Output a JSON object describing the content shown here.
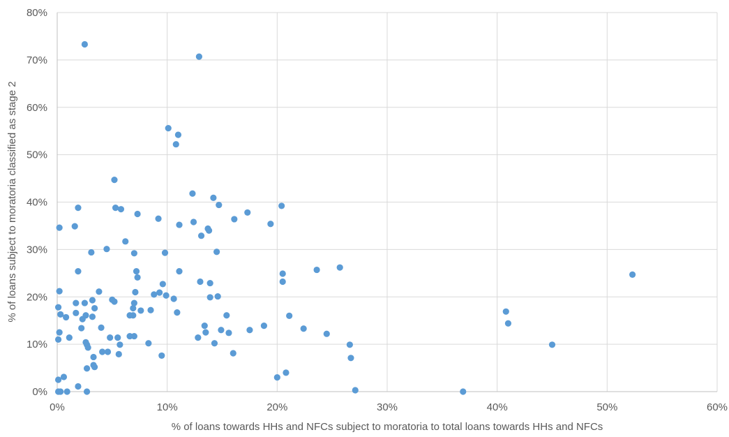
{
  "chart_data": {
    "type": "scatter",
    "title": "",
    "xlabel": "% of loans towards HHs and NFCs subject to moratoria to total loans towards HHs and NFCs",
    "ylabel": "% of loans subject to moratoria classified as stage 2",
    "xlim": [
      0,
      0.6
    ],
    "ylim": [
      0,
      0.8
    ],
    "grid": true,
    "x_ticks": [
      {
        "value": 0,
        "label": "0%"
      },
      {
        "value": 0.1,
        "label": "10%"
      },
      {
        "value": 0.2,
        "label": "20%"
      },
      {
        "value": 0.3,
        "label": "30%"
      },
      {
        "value": 0.4,
        "label": "40%"
      },
      {
        "value": 0.5,
        "label": "50%"
      },
      {
        "value": 0.6,
        "label": "60%"
      }
    ],
    "y_ticks": [
      {
        "value": 0,
        "label": "0%"
      },
      {
        "value": 0.1,
        "label": "10%"
      },
      {
        "value": 0.2,
        "label": "20%"
      },
      {
        "value": 0.3,
        "label": "30%"
      },
      {
        "value": 0.4,
        "label": "40%"
      },
      {
        "value": 0.5,
        "label": "50%"
      },
      {
        "value": 0.6,
        "label": "60%"
      },
      {
        "value": 0.7,
        "label": "70%"
      },
      {
        "value": 0.8,
        "label": "80%"
      }
    ],
    "marker_color": "#5b9bd5",
    "grid_color": "#d9d9d9",
    "points": [
      [
        0.025,
        0.733
      ],
      [
        0.129,
        0.707
      ],
      [
        0.101,
        0.556
      ],
      [
        0.11,
        0.542
      ],
      [
        0.108,
        0.522
      ],
      [
        0.052,
        0.447
      ],
      [
        0.123,
        0.418
      ],
      [
        0.142,
        0.409
      ],
      [
        0.204,
        0.392
      ],
      [
        0.147,
        0.394
      ],
      [
        0.019,
        0.388
      ],
      [
        0.053,
        0.388
      ],
      [
        0.058,
        0.385
      ],
      [
        0.173,
        0.378
      ],
      [
        0.073,
        0.375
      ],
      [
        0.092,
        0.365
      ],
      [
        0.161,
        0.364
      ],
      [
        0.124,
        0.358
      ],
      [
        0.194,
        0.354
      ],
      [
        0.111,
        0.352
      ],
      [
        0.016,
        0.349
      ],
      [
        0.002,
        0.346
      ],
      [
        0.137,
        0.344
      ],
      [
        0.138,
        0.34
      ],
      [
        0.131,
        0.329
      ],
      [
        0.062,
        0.317
      ],
      [
        0.045,
        0.301
      ],
      [
        0.031,
        0.294
      ],
      [
        0.07,
        0.292
      ],
      [
        0.098,
        0.293
      ],
      [
        0.145,
        0.295
      ],
      [
        0.257,
        0.262
      ],
      [
        0.236,
        0.257
      ],
      [
        0.523,
        0.247
      ],
      [
        0.019,
        0.254
      ],
      [
        0.072,
        0.254
      ],
      [
        0.111,
        0.254
      ],
      [
        0.205,
        0.249
      ],
      [
        0.073,
        0.241
      ],
      [
        0.13,
        0.232
      ],
      [
        0.205,
        0.232
      ],
      [
        0.139,
        0.229
      ],
      [
        0.096,
        0.227
      ],
      [
        0.002,
        0.212
      ],
      [
        0.038,
        0.211
      ],
      [
        0.071,
        0.21
      ],
      [
        0.093,
        0.209
      ],
      [
        0.088,
        0.205
      ],
      [
        0.099,
        0.203
      ],
      [
        0.146,
        0.201
      ],
      [
        0.139,
        0.199
      ],
      [
        0.106,
        0.196
      ],
      [
        0.05,
        0.194
      ],
      [
        0.032,
        0.193
      ],
      [
        0.052,
        0.19
      ],
      [
        0.017,
        0.187
      ],
      [
        0.025,
        0.187
      ],
      [
        0.07,
        0.187
      ],
      [
        0.001,
        0.178
      ],
      [
        0.034,
        0.176
      ],
      [
        0.069,
        0.176
      ],
      [
        0.076,
        0.171
      ],
      [
        0.085,
        0.172
      ],
      [
        0.408,
        0.169
      ],
      [
        0.109,
        0.167
      ],
      [
        0.017,
        0.166
      ],
      [
        0.003,
        0.163
      ],
      [
        0.026,
        0.161
      ],
      [
        0.066,
        0.161
      ],
      [
        0.069,
        0.161
      ],
      [
        0.154,
        0.161
      ],
      [
        0.211,
        0.16
      ],
      [
        0.032,
        0.158
      ],
      [
        0.008,
        0.157
      ],
      [
        0.023,
        0.153
      ],
      [
        0.41,
        0.144
      ],
      [
        0.134,
        0.139
      ],
      [
        0.188,
        0.139
      ],
      [
        0.04,
        0.135
      ],
      [
        0.022,
        0.134
      ],
      [
        0.224,
        0.133
      ],
      [
        0.175,
        0.13
      ],
      [
        0.149,
        0.13
      ],
      [
        0.002,
        0.125
      ],
      [
        0.135,
        0.125
      ],
      [
        0.156,
        0.124
      ],
      [
        0.245,
        0.122
      ],
      [
        0.066,
        0.117
      ],
      [
        0.07,
        0.117
      ],
      [
        0.011,
        0.114
      ],
      [
        0.048,
        0.114
      ],
      [
        0.055,
        0.114
      ],
      [
        0.128,
        0.114
      ],
      [
        0.001,
        0.11
      ],
      [
        0.026,
        0.104
      ],
      [
        0.083,
        0.102
      ],
      [
        0.143,
        0.102
      ],
      [
        0.027,
        0.099
      ],
      [
        0.057,
        0.099
      ],
      [
        0.266,
        0.099
      ],
      [
        0.45,
        0.099
      ],
      [
        0.028,
        0.093
      ],
      [
        0.041,
        0.084
      ],
      [
        0.046,
        0.084
      ],
      [
        0.16,
        0.081
      ],
      [
        0.056,
        0.079
      ],
      [
        0.095,
        0.076
      ],
      [
        0.033,
        0.073
      ],
      [
        0.267,
        0.071
      ],
      [
        0.033,
        0.056
      ],
      [
        0.034,
        0.052
      ],
      [
        0.027,
        0.049
      ],
      [
        0.208,
        0.04
      ],
      [
        0.006,
        0.031
      ],
      [
        0.2,
        0.03
      ],
      [
        0.001,
        0.025
      ],
      [
        0.019,
        0.011
      ],
      [
        0.271,
        0.003
      ],
      [
        0.001,
        0.0
      ],
      [
        0.003,
        0.0
      ],
      [
        0.009,
        0.0
      ],
      [
        0.027,
        0.0
      ],
      [
        0.369,
        0.0
      ]
    ]
  }
}
